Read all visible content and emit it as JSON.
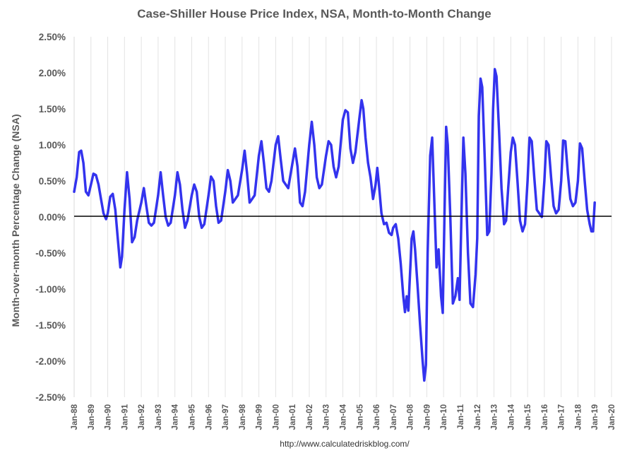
{
  "chart_data": {
    "type": "line",
    "title": "Case-Shiller House Price Index, NSA, Month-to-Month Change",
    "xlabel": "",
    "ylabel": "Month-over-month Percentage Change (NSA)",
    "source": "http://www.calculatedriskblog.com/",
    "ylim": [
      -2.5,
      2.5
    ],
    "yticks": [
      2.5,
      2.0,
      1.5,
      1.0,
      0.5,
      0.0,
      -0.5,
      -1.0,
      -1.5,
      -2.0,
      -2.5
    ],
    "ytick_labels": [
      "2.50%",
      "2.00%",
      "1.50%",
      "1.00%",
      "0.50%",
      "0.00%",
      "-0.50%",
      "-1.00%",
      "-1.50%",
      "-2.00%",
      "-2.50%"
    ],
    "xlim": [
      1988,
      2020
    ],
    "xtick_labels": [
      "Jan-88",
      "Jan-89",
      "Jan-90",
      "Jan-91",
      "Jan-92",
      "Jan-93",
      "Jan-94",
      "Jan-95",
      "Jan-96",
      "Jan-97",
      "Jan-98",
      "Jan-99",
      "Jan-00",
      "Jan-01",
      "Jan-02",
      "Jan-03",
      "Jan-04",
      "Jan-05",
      "Jan-06",
      "Jan-07",
      "Jan-08",
      "Jan-09",
      "Jan-10",
      "Jan-11",
      "Jan-12",
      "Jan-13",
      "Jan-14",
      "Jan-15",
      "Jan-16",
      "Jan-17",
      "Jan-18",
      "Jan-19",
      "Jan-20"
    ],
    "grid": "vertical",
    "legend": "none",
    "line_color": "#3333ee",
    "series": [
      {
        "points": [
          [
            1988.0,
            0.35
          ],
          [
            1988.15,
            0.55
          ],
          [
            1988.3,
            0.9
          ],
          [
            1988.42,
            0.92
          ],
          [
            1988.55,
            0.75
          ],
          [
            1988.7,
            0.35
          ],
          [
            1988.85,
            0.3
          ],
          [
            1989.0,
            0.45
          ],
          [
            1989.15,
            0.6
          ],
          [
            1989.3,
            0.58
          ],
          [
            1989.45,
            0.45
          ],
          [
            1989.6,
            0.25
          ],
          [
            1989.75,
            0.05
          ],
          [
            1989.9,
            -0.03
          ],
          [
            1990.0,
            0.05
          ],
          [
            1990.15,
            0.28
          ],
          [
            1990.3,
            0.32
          ],
          [
            1990.45,
            0.1
          ],
          [
            1990.6,
            -0.3
          ],
          [
            1990.75,
            -0.7
          ],
          [
            1990.85,
            -0.55
          ],
          [
            1991.0,
            0.1
          ],
          [
            1991.15,
            0.62
          ],
          [
            1991.3,
            0.25
          ],
          [
            1991.45,
            -0.35
          ],
          [
            1991.6,
            -0.28
          ],
          [
            1991.75,
            -0.05
          ],
          [
            1992.0,
            0.2
          ],
          [
            1992.15,
            0.4
          ],
          [
            1992.3,
            0.15
          ],
          [
            1992.45,
            -0.08
          ],
          [
            1992.6,
            -0.12
          ],
          [
            1992.75,
            -0.08
          ],
          [
            1993.0,
            0.3
          ],
          [
            1993.15,
            0.62
          ],
          [
            1993.3,
            0.3
          ],
          [
            1993.45,
            0.0
          ],
          [
            1993.6,
            -0.12
          ],
          [
            1993.75,
            -0.08
          ],
          [
            1994.0,
            0.3
          ],
          [
            1994.15,
            0.62
          ],
          [
            1994.3,
            0.45
          ],
          [
            1994.45,
            0.1
          ],
          [
            1994.6,
            -0.15
          ],
          [
            1994.75,
            -0.05
          ],
          [
            1995.0,
            0.3
          ],
          [
            1995.15,
            0.45
          ],
          [
            1995.3,
            0.35
          ],
          [
            1995.45,
            0.0
          ],
          [
            1995.6,
            -0.15
          ],
          [
            1995.75,
            -0.1
          ],
          [
            1996.0,
            0.3
          ],
          [
            1996.15,
            0.56
          ],
          [
            1996.3,
            0.5
          ],
          [
            1996.45,
            0.15
          ],
          [
            1996.6,
            -0.08
          ],
          [
            1996.75,
            -0.05
          ],
          [
            1997.0,
            0.35
          ],
          [
            1997.15,
            0.65
          ],
          [
            1997.3,
            0.5
          ],
          [
            1997.45,
            0.2
          ],
          [
            1997.6,
            0.25
          ],
          [
            1997.75,
            0.3
          ],
          [
            1998.0,
            0.65
          ],
          [
            1998.15,
            0.92
          ],
          [
            1998.3,
            0.6
          ],
          [
            1998.45,
            0.2
          ],
          [
            1998.6,
            0.25
          ],
          [
            1998.75,
            0.3
          ],
          [
            1999.0,
            0.85
          ],
          [
            1999.15,
            1.05
          ],
          [
            1999.3,
            0.75
          ],
          [
            1999.45,
            0.4
          ],
          [
            1999.6,
            0.35
          ],
          [
            1999.75,
            0.5
          ],
          [
            2000.0,
            1.0
          ],
          [
            2000.15,
            1.12
          ],
          [
            2000.3,
            0.8
          ],
          [
            2000.45,
            0.5
          ],
          [
            2000.6,
            0.45
          ],
          [
            2000.75,
            0.4
          ],
          [
            2001.0,
            0.75
          ],
          [
            2001.15,
            0.95
          ],
          [
            2001.3,
            0.7
          ],
          [
            2001.45,
            0.2
          ],
          [
            2001.6,
            0.15
          ],
          [
            2001.75,
            0.35
          ],
          [
            2002.0,
            1.0
          ],
          [
            2002.15,
            1.32
          ],
          [
            2002.3,
            1.0
          ],
          [
            2002.45,
            0.55
          ],
          [
            2002.6,
            0.4
          ],
          [
            2002.75,
            0.45
          ],
          [
            2003.0,
            0.85
          ],
          [
            2003.15,
            1.05
          ],
          [
            2003.3,
            1.0
          ],
          [
            2003.45,
            0.7
          ],
          [
            2003.6,
            0.55
          ],
          [
            2003.75,
            0.7
          ],
          [
            2004.0,
            1.35
          ],
          [
            2004.15,
            1.48
          ],
          [
            2004.3,
            1.45
          ],
          [
            2004.45,
            0.95
          ],
          [
            2004.6,
            0.75
          ],
          [
            2004.75,
            0.9
          ],
          [
            2005.0,
            1.4
          ],
          [
            2005.12,
            1.62
          ],
          [
            2005.22,
            1.5
          ],
          [
            2005.35,
            1.1
          ],
          [
            2005.5,
            0.75
          ],
          [
            2005.65,
            0.55
          ],
          [
            2005.8,
            0.25
          ],
          [
            2005.95,
            0.45
          ],
          [
            2006.05,
            0.68
          ],
          [
            2006.15,
            0.45
          ],
          [
            2006.3,
            0.05
          ],
          [
            2006.45,
            -0.1
          ],
          [
            2006.6,
            -0.08
          ],
          [
            2006.75,
            -0.22
          ],
          [
            2006.9,
            -0.25
          ],
          [
            2007.0,
            -0.15
          ],
          [
            2007.15,
            -0.1
          ],
          [
            2007.3,
            -0.3
          ],
          [
            2007.45,
            -0.65
          ],
          [
            2007.6,
            -1.1
          ],
          [
            2007.7,
            -1.32
          ],
          [
            2007.8,
            -1.1
          ],
          [
            2007.9,
            -1.3
          ],
          [
            2008.0,
            -0.8
          ],
          [
            2008.1,
            -0.3
          ],
          [
            2008.2,
            -0.2
          ],
          [
            2008.3,
            -0.45
          ],
          [
            2008.45,
            -0.95
          ],
          [
            2008.6,
            -1.5
          ],
          [
            2008.75,
            -2.0
          ],
          [
            2008.85,
            -2.27
          ],
          [
            2008.95,
            -2.05
          ],
          [
            2009.05,
            -0.5
          ],
          [
            2009.2,
            0.85
          ],
          [
            2009.32,
            1.1
          ],
          [
            2009.45,
            0.2
          ],
          [
            2009.58,
            -0.7
          ],
          [
            2009.7,
            -0.45
          ],
          [
            2009.85,
            -1.1
          ],
          [
            2009.95,
            -1.33
          ],
          [
            2010.05,
            0.0
          ],
          [
            2010.15,
            1.25
          ],
          [
            2010.25,
            1.0
          ],
          [
            2010.4,
            0.0
          ],
          [
            2010.55,
            -1.2
          ],
          [
            2010.7,
            -1.1
          ],
          [
            2010.85,
            -0.85
          ],
          [
            2010.95,
            -1.15
          ],
          [
            2011.05,
            -0.1
          ],
          [
            2011.18,
            1.1
          ],
          [
            2011.3,
            0.6
          ],
          [
            2011.45,
            -0.5
          ],
          [
            2011.6,
            -1.2
          ],
          [
            2011.75,
            -1.25
          ],
          [
            2011.9,
            -0.8
          ],
          [
            2012.0,
            -0.3
          ],
          [
            2012.1,
            1.4
          ],
          [
            2012.2,
            1.92
          ],
          [
            2012.3,
            1.8
          ],
          [
            2012.45,
            0.8
          ],
          [
            2012.6,
            -0.25
          ],
          [
            2012.72,
            -0.2
          ],
          [
            2012.85,
            0.6
          ],
          [
            2012.95,
            1.5
          ],
          [
            2013.05,
            2.05
          ],
          [
            2013.15,
            1.95
          ],
          [
            2013.3,
            1.2
          ],
          [
            2013.45,
            0.4
          ],
          [
            2013.6,
            -0.1
          ],
          [
            2013.72,
            -0.05
          ],
          [
            2013.85,
            0.4
          ],
          [
            2014.0,
            0.9
          ],
          [
            2014.12,
            1.1
          ],
          [
            2014.25,
            1.0
          ],
          [
            2014.4,
            0.5
          ],
          [
            2014.55,
            -0.05
          ],
          [
            2014.7,
            -0.2
          ],
          [
            2014.85,
            -0.1
          ],
          [
            2015.0,
            0.5
          ],
          [
            2015.12,
            1.1
          ],
          [
            2015.25,
            1.05
          ],
          [
            2015.4,
            0.55
          ],
          [
            2015.55,
            0.1
          ],
          [
            2015.7,
            0.05
          ],
          [
            2015.85,
            0.0
          ],
          [
            2016.0,
            0.5
          ],
          [
            2016.12,
            1.05
          ],
          [
            2016.25,
            1.0
          ],
          [
            2016.4,
            0.55
          ],
          [
            2016.55,
            0.15
          ],
          [
            2016.7,
            0.05
          ],
          [
            2016.85,
            0.1
          ],
          [
            2017.0,
            0.5
          ],
          [
            2017.12,
            1.06
          ],
          [
            2017.25,
            1.05
          ],
          [
            2017.4,
            0.6
          ],
          [
            2017.55,
            0.25
          ],
          [
            2017.7,
            0.15
          ],
          [
            2017.85,
            0.2
          ],
          [
            2018.0,
            0.5
          ],
          [
            2018.12,
            1.02
          ],
          [
            2018.25,
            0.95
          ],
          [
            2018.4,
            0.5
          ],
          [
            2018.55,
            0.1
          ],
          [
            2018.7,
            -0.1
          ],
          [
            2018.8,
            -0.2
          ],
          [
            2018.9,
            -0.2
          ],
          [
            2019.0,
            0.2
          ]
        ]
      }
    ]
  }
}
